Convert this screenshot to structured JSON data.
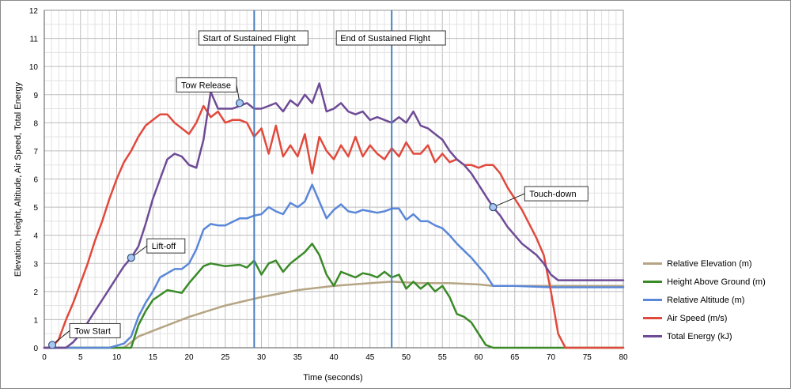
{
  "chart_data": {
    "type": "line",
    "title": "",
    "xlabel": "Time (seconds)",
    "ylabel": "Elevation, Height, Altitude, Air Speed, Total Energy",
    "xlim": [
      0,
      80
    ],
    "ylim": [
      0,
      12
    ],
    "xticks": [
      "0",
      "5",
      "10",
      "15",
      "20",
      "25",
      "30",
      "35",
      "40",
      "45",
      "50",
      "55",
      "60",
      "65",
      "70",
      "75",
      "80"
    ],
    "yticks": [
      "0",
      "1",
      "2",
      "3",
      "4",
      "5",
      "6",
      "7",
      "8",
      "9",
      "10",
      "11",
      "12"
    ],
    "grid": true,
    "legend_position": "right",
    "series": [
      {
        "name": "Relative Elevation (m)",
        "color": "#b5a584",
        "x": [
          0,
          11,
          13,
          16,
          20,
          25,
          30,
          35,
          40,
          45,
          48,
          52,
          56,
          60,
          62,
          65,
          70,
          75,
          80
        ],
        "y": [
          0,
          0,
          0.4,
          0.7,
          1.1,
          1.5,
          1.8,
          2.05,
          2.2,
          2.3,
          2.35,
          2.3,
          2.3,
          2.25,
          2.2,
          2.2,
          2.2,
          2.2,
          2.2
        ]
      },
      {
        "name": "Height Above Ground (m)",
        "color": "#3a8a28",
        "x": [
          0,
          12,
          13,
          14,
          15,
          17,
          18,
          19,
          20,
          21,
          22,
          23,
          25,
          27,
          28,
          29,
          30,
          31,
          32,
          33,
          34,
          35,
          36,
          37,
          38,
          39,
          40,
          41,
          42,
          43,
          44,
          45,
          46,
          47,
          48,
          49,
          50,
          51,
          52,
          53,
          54,
          55,
          56,
          57,
          58,
          59,
          60,
          61,
          62,
          63,
          70,
          80
        ],
        "y": [
          0,
          0,
          0.8,
          1.3,
          1.7,
          2.05,
          2.0,
          1.95,
          2.3,
          2.6,
          2.9,
          3.0,
          2.9,
          2.95,
          2.85,
          3.1,
          2.6,
          3.0,
          3.1,
          2.7,
          3.0,
          3.2,
          3.4,
          3.7,
          3.3,
          2.6,
          2.2,
          2.7,
          2.6,
          2.5,
          2.65,
          2.6,
          2.5,
          2.7,
          2.5,
          2.6,
          2.1,
          2.35,
          2.1,
          2.3,
          2.0,
          2.2,
          1.8,
          1.2,
          1.1,
          0.9,
          0.5,
          0.1,
          0,
          0,
          0,
          0
        ]
      },
      {
        "name": "Relative Altitude (m)",
        "color": "#5b87d8",
        "x": [
          0,
          9,
          11,
          12,
          13,
          14,
          15,
          16,
          18,
          19,
          20,
          21,
          22,
          23,
          24,
          25,
          27,
          28,
          29,
          30,
          31,
          32,
          33,
          34,
          35,
          36,
          37,
          38,
          39,
          40,
          41,
          42,
          43,
          44,
          45,
          46,
          47,
          48,
          49,
          50,
          51,
          52,
          53,
          54,
          55,
          56,
          57,
          58,
          59,
          60,
          61,
          62,
          65,
          70,
          80
        ],
        "y": [
          0,
          0,
          0.15,
          0.4,
          1.1,
          1.6,
          2.0,
          2.5,
          2.8,
          2.8,
          3.0,
          3.5,
          4.2,
          4.4,
          4.35,
          4.35,
          4.6,
          4.6,
          4.7,
          4.75,
          5.0,
          4.85,
          4.75,
          5.15,
          5.0,
          5.2,
          5.8,
          5.2,
          4.6,
          4.9,
          5.1,
          4.85,
          4.8,
          4.9,
          4.85,
          4.8,
          4.85,
          4.95,
          4.95,
          4.55,
          4.75,
          4.5,
          4.5,
          4.35,
          4.25,
          4.0,
          3.7,
          3.45,
          3.2,
          2.9,
          2.6,
          2.2,
          2.2,
          2.15,
          2.15
        ]
      },
      {
        "name": "Air Speed (m/s)",
        "color": "#e1493c",
        "x": [
          0,
          1,
          2,
          3,
          4,
          5,
          6,
          7,
          8,
          9,
          10,
          11,
          12,
          13,
          14,
          15,
          16,
          17,
          18,
          19,
          20,
          21,
          22,
          23,
          24,
          25,
          26,
          27,
          28,
          29,
          30,
          31,
          32,
          33,
          34,
          35,
          36,
          37,
          38,
          39,
          40,
          41,
          42,
          43,
          44,
          45,
          46,
          47,
          48,
          49,
          50,
          51,
          52,
          53,
          54,
          55,
          56,
          57,
          58,
          59,
          60,
          61,
          62,
          63,
          64,
          65,
          66,
          67,
          68,
          69,
          70,
          71,
          72,
          73,
          80
        ],
        "y": [
          0,
          0,
          0.3,
          1.0,
          1.6,
          2.3,
          3.0,
          3.8,
          4.5,
          5.3,
          6.0,
          6.6,
          7.0,
          7.5,
          7.9,
          8.1,
          8.3,
          8.3,
          8.0,
          7.8,
          7.6,
          8.0,
          8.6,
          8.2,
          8.4,
          8.0,
          8.1,
          8.1,
          8.0,
          7.5,
          7.8,
          6.9,
          7.9,
          6.8,
          7.2,
          6.8,
          7.6,
          6.2,
          7.5,
          7.0,
          6.7,
          7.2,
          6.8,
          7.5,
          6.8,
          7.2,
          6.9,
          6.7,
          7.1,
          6.8,
          7.3,
          6.9,
          6.9,
          7.2,
          6.6,
          6.9,
          6.6,
          6.7,
          6.5,
          6.5,
          6.4,
          6.5,
          6.5,
          6.2,
          5.7,
          5.3,
          4.9,
          4.4,
          3.9,
          3.3,
          2.0,
          0.5,
          0,
          0,
          0
        ]
      },
      {
        "name": "Total Energy (kJ)",
        "color": "#6e4b96",
        "x": [
          0,
          1,
          3,
          4,
          5,
          6,
          7,
          8,
          9,
          10,
          11,
          12,
          13,
          14,
          15,
          16,
          17,
          18,
          19,
          20,
          21,
          22,
          23,
          24,
          25,
          26,
          27,
          28,
          29,
          30,
          31,
          32,
          33,
          34,
          35,
          36,
          37,
          38,
          39,
          40,
          41,
          42,
          43,
          44,
          45,
          46,
          47,
          48,
          49,
          50,
          51,
          52,
          53,
          54,
          55,
          56,
          57,
          58,
          59,
          60,
          61,
          62,
          63,
          64,
          65,
          66,
          67,
          68,
          69,
          70,
          71,
          72,
          80
        ],
        "y": [
          0,
          0,
          0,
          0.2,
          0.5,
          0.9,
          1.3,
          1.7,
          2.1,
          2.5,
          2.9,
          3.2,
          3.6,
          4.4,
          5.3,
          6.0,
          6.7,
          6.9,
          6.8,
          6.5,
          6.4,
          7.4,
          9.1,
          8.5,
          8.5,
          8.5,
          8.6,
          8.7,
          8.5,
          8.5,
          8.6,
          8.7,
          8.4,
          8.8,
          8.6,
          9.0,
          8.7,
          9.4,
          8.4,
          8.5,
          8.7,
          8.4,
          8.3,
          8.4,
          8.1,
          8.2,
          8.1,
          8.0,
          8.2,
          8.0,
          8.4,
          7.9,
          7.8,
          7.6,
          7.4,
          7.0,
          6.7,
          6.5,
          6.2,
          5.8,
          5.4,
          5.0,
          4.7,
          4.3,
          4.0,
          3.7,
          3.5,
          3.3,
          3.0,
          2.6,
          2.4,
          2.4,
          2.4
        ]
      }
    ],
    "vertical_lines": [
      {
        "x": 29,
        "label": "Start of Sustained Flight"
      },
      {
        "x": 48,
        "label": "End of Sustained Flight"
      }
    ],
    "annotations": [
      {
        "label": "Tow Start",
        "x": 1.1,
        "y": 0.1
      },
      {
        "label": "Lift-off",
        "x": 12,
        "y": 3.2
      },
      {
        "label": "Tow Release",
        "x": 27,
        "y": 8.7
      },
      {
        "label": "Touch-down",
        "x": 62,
        "y": 5.0
      }
    ]
  }
}
